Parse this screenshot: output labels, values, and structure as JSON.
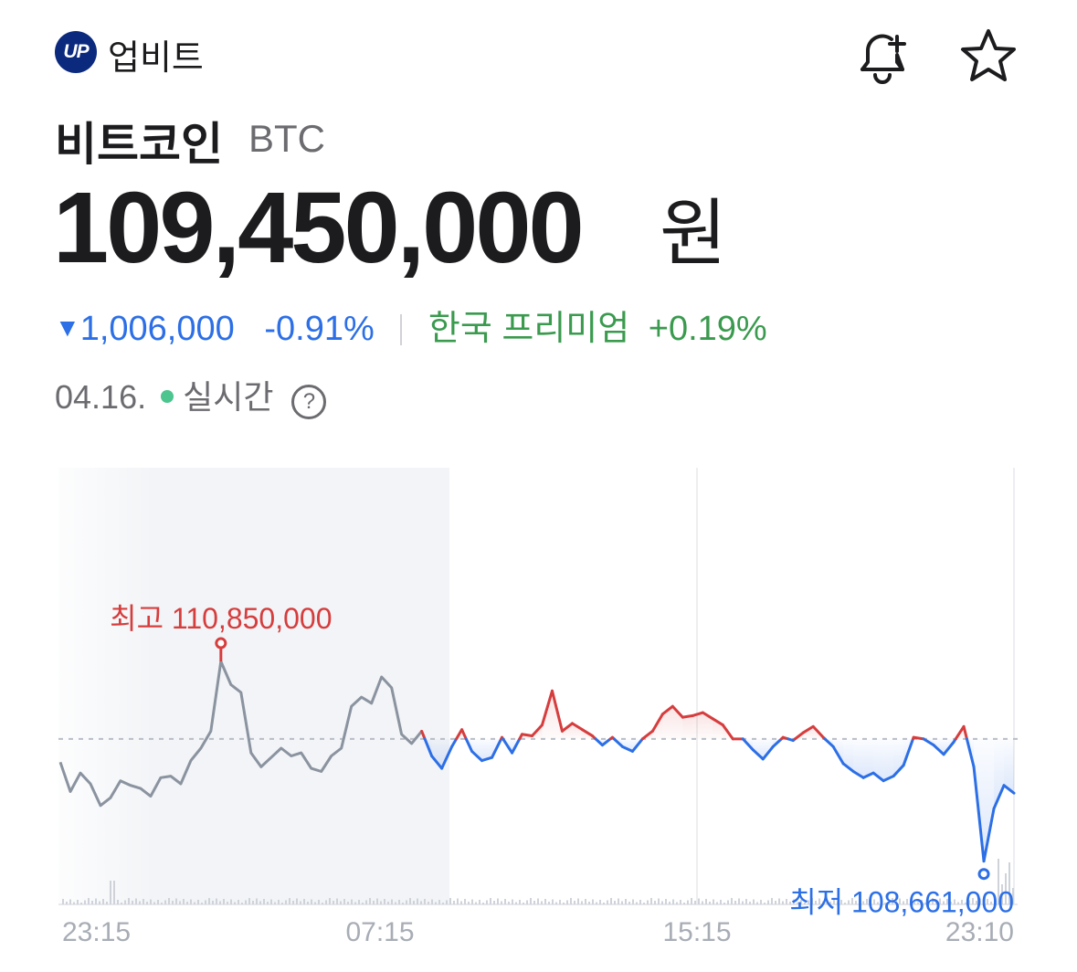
{
  "header": {
    "logo_text": "UP",
    "brand": "업비트",
    "bell_icon": "bell-plus-icon",
    "star_icon": "star-icon"
  },
  "coin": {
    "name": "비트코인",
    "symbol": "BTC",
    "price": "109,450,000",
    "price_unit": "원",
    "change_arrow": "▼",
    "change_amount": "1,006,000",
    "change_percent": "-0.91%",
    "premium_label": "한국 프리미엄",
    "premium_value": "+0.19%",
    "date": "04.16.",
    "live_label": "실시간",
    "help_icon": "?"
  },
  "colors": {
    "rise": "#d63d3d",
    "fall": "#2c6fe6",
    "past": "#8a939f",
    "premium": "#3a9a4e",
    "live": "#4cc58f"
  },
  "chart_data": {
    "type": "line",
    "x_tick_labels": [
      "23:15",
      "07:15",
      "15:15",
      "23:10"
    ],
    "reference_price": 109450000,
    "ylim": [
      108500000,
      111200000
    ],
    "high": {
      "label": "최고 110,850,000",
      "value": 110850000
    },
    "low": {
      "label": "최저 108,661,000",
      "value": 108661000
    },
    "grid": false,
    "past_segment_end_index": 36,
    "series": [
      {
        "points": [
          109300000,
          109110000,
          109230000,
          109160000,
          109020000,
          109070000,
          109180000,
          109150000,
          109130000,
          109080000,
          109200000,
          109210000,
          109160000,
          109310000,
          109390000,
          109500000,
          109950000,
          109800000,
          109750000,
          109360000,
          109270000,
          109330000,
          109390000,
          109340000,
          109360000,
          109260000,
          109240000,
          109340000,
          109390000,
          109660000,
          109720000,
          109680000,
          109850000,
          109780000,
          109480000,
          109420000,
          109500000,
          109340000,
          109260000,
          109400000,
          109510000,
          109370000,
          109310000,
          109330000,
          109460000,
          109360000,
          109480000,
          109470000,
          109540000,
          109760000,
          109500000,
          109550000,
          109510000,
          109470000,
          109410000,
          109460000,
          109400000,
          109370000,
          109450000,
          109500000,
          109610000,
          109660000,
          109590000,
          109600000,
          109620000,
          109580000,
          109540000,
          109450000,
          109450000,
          109380000,
          109320000,
          109400000,
          109460000,
          109440000,
          109490000,
          109530000,
          109460000,
          109400000,
          109290000,
          109240000,
          109200000,
          109230000,
          109180000,
          109210000,
          109280000,
          109460000,
          109450000,
          109410000,
          109350000,
          109430000,
          109530000,
          109270000,
          108661000,
          109000000,
          109150000,
          109100000
        ]
      }
    ]
  }
}
